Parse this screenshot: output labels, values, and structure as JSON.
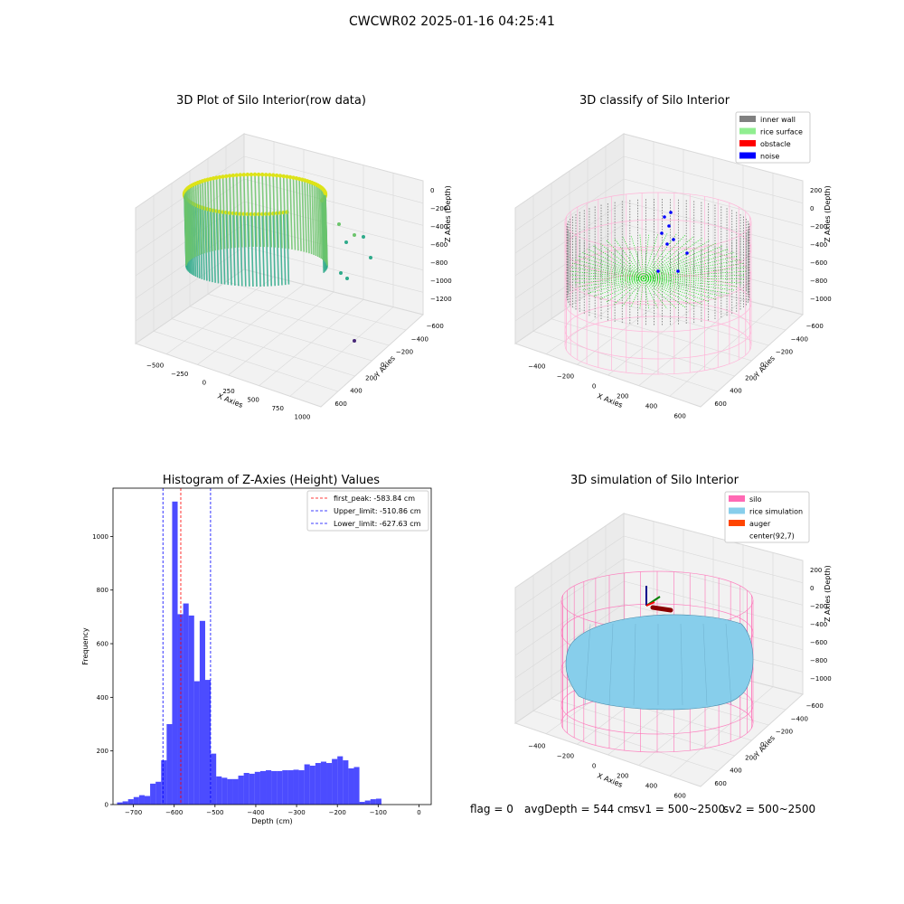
{
  "suptitle": "CWCWR02 2025-01-16 04:25:41",
  "panels": {
    "raw": {
      "title": "3D Plot of Silo Interior(row data)",
      "xlabel": "X Axies",
      "ylabel": "Y Axies",
      "zlabel": "Z Axies (Depth)",
      "xticks": [
        "−500",
        "−250",
        "0",
        "250",
        "500",
        "750",
        "1000"
      ],
      "yticks": [
        "−600",
        "−400",
        "−200",
        "0",
        "200",
        "400",
        "600"
      ],
      "zticks": [
        "0",
        "−200",
        "−400",
        "−600",
        "−800",
        "−1000",
        "−1200"
      ]
    },
    "classify": {
      "title": "3D classify of Silo Interior",
      "xlabel": "X Axies",
      "ylabel": "Y Axies",
      "zlabel": "Z Axies (Depth)",
      "xticks": [
        "−400",
        "−200",
        "0",
        "200",
        "400",
        "600"
      ],
      "yticks": [
        "−600",
        "−400",
        "−200",
        "0",
        "200",
        "400",
        "600"
      ],
      "zticks": [
        "200",
        "0",
        "−200",
        "−400",
        "−600",
        "−800",
        "−1000"
      ],
      "legend": [
        {
          "label": "inner wall",
          "color": "#808080"
        },
        {
          "label": "rice surface",
          "color": "#90ee90"
        },
        {
          "label": "obstacle",
          "color": "#ff0000"
        },
        {
          "label": "noise",
          "color": "#0000ff"
        }
      ]
    },
    "simulation": {
      "title": "3D simulation of Silo Interior",
      "xlabel": "X Axies",
      "ylabel": "Y Axies",
      "zlabel": "Z Axies (Depth)",
      "xticks": [
        "−400",
        "−200",
        "0",
        "200",
        "400",
        "600"
      ],
      "yticks": [
        "−600",
        "−400",
        "−200",
        "0",
        "200",
        "400",
        "600"
      ],
      "zticks": [
        "200",
        "0",
        "−200",
        "−400",
        "−600",
        "−800",
        "−1000"
      ],
      "legend": [
        {
          "label": "silo",
          "color": "#ff69b4"
        },
        {
          "label": "rice simulation",
          "color": "#87ceeb"
        },
        {
          "label": "auger",
          "color": "#ff4500"
        },
        {
          "label": "center(92,7)",
          "color": ""
        }
      ]
    }
  },
  "chart_data": {
    "type": "bar",
    "title": "Histogram of Z-Axies (Height) Values",
    "xlabel": "Depth (cm)",
    "ylabel": "Frequency",
    "xlim": [
      -750,
      30
    ],
    "ylim": [
      0,
      1180
    ],
    "xticks": [
      -700,
      -600,
      -500,
      -400,
      -300,
      -200,
      -100,
      0
    ],
    "yticks": [
      0,
      200,
      400,
      600,
      800,
      1000
    ],
    "bin_width": 13.5,
    "bin_start": -740,
    "values": [
      8,
      12,
      20,
      28,
      35,
      32,
      78,
      85,
      165,
      300,
      1130,
      710,
      750,
      705,
      460,
      685,
      465,
      190,
      105,
      100,
      95,
      95,
      108,
      118,
      115,
      122,
      125,
      128,
      125,
      125,
      128,
      128,
      130,
      128,
      150,
      145,
      155,
      160,
      155,
      170,
      180,
      165,
      135,
      140,
      10,
      15,
      20,
      22
    ],
    "color": "#0000ff",
    "vlines": [
      {
        "label": "first_peak: -583.84 cm",
        "x": -583.84,
        "color": "#ff0000"
      },
      {
        "label": "Upper_limit: -510.86 cm",
        "x": -510.86,
        "color": "#0000ff"
      },
      {
        "label": "Lower_limit: -627.63 cm",
        "x": -627.63,
        "color": "#0000ff"
      }
    ]
  },
  "footer": {
    "flag": "flag = 0",
    "avg": "avgDepth = 544 cm",
    "sv1": "sv1 = 500~2500",
    "sv2": "sv2 = 500~2500"
  }
}
